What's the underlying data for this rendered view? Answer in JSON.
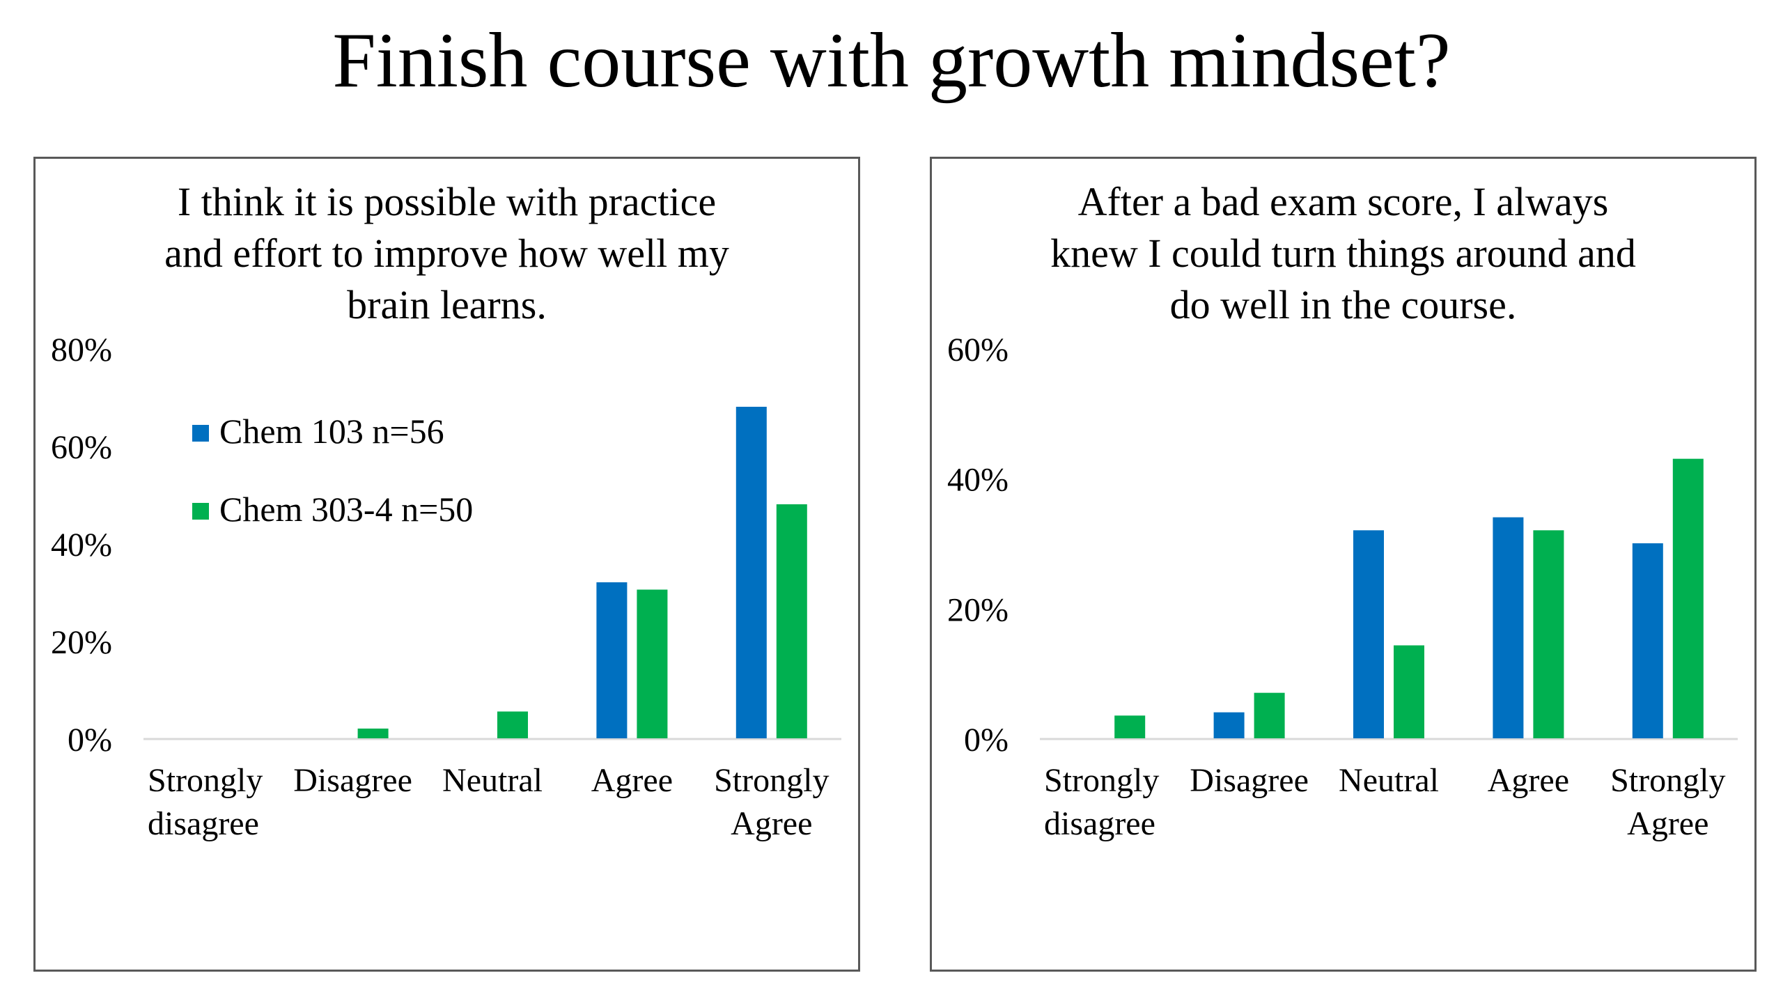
{
  "title": "Finish course with growth mindset?",
  "colors": {
    "series_1": "#0070C0",
    "series_2": "#00B050",
    "axis": "#D9D9D9",
    "border": "#595959"
  },
  "chart_data": [
    {
      "type": "bar",
      "title": "I think it is possible with practice\nand effort to improve how well my\nbrain learns.",
      "categories": [
        "Strongly\ndisagree",
        "Disagree",
        "Neutral",
        "Agree",
        "Strongly\nAgree"
      ],
      "series": [
        {
          "name": "Chem 103 n=56",
          "values": [
            0,
            0,
            0,
            32,
            68
          ]
        },
        {
          "name": "Chem 303-4 n=50",
          "values": [
            0,
            2,
            5.5,
            30.5,
            48
          ]
        }
      ],
      "ylim": [
        0,
        80
      ],
      "yticks": [
        "0%",
        "20%",
        "40%",
        "60%",
        "80%"
      ],
      "legend": "top-left",
      "grid": false
    },
    {
      "type": "bar",
      "title": "After a bad exam score, I always\nknew I could turn things around and\ndo well in the course.",
      "categories": [
        "Strongly\ndisagree",
        "Disagree",
        "Neutral",
        "Agree",
        "Strongly\nAgree"
      ],
      "series": [
        {
          "name": "Chem 103 n=56",
          "values": [
            0,
            4,
            32,
            34,
            30
          ]
        },
        {
          "name": "Chem 303-4 n=50",
          "values": [
            3.5,
            7,
            14.3,
            32,
            43
          ]
        }
      ],
      "ylim": [
        0,
        60
      ],
      "yticks": [
        "0%",
        "20%",
        "40%",
        "60%"
      ],
      "legend": "none",
      "grid": false
    }
  ]
}
